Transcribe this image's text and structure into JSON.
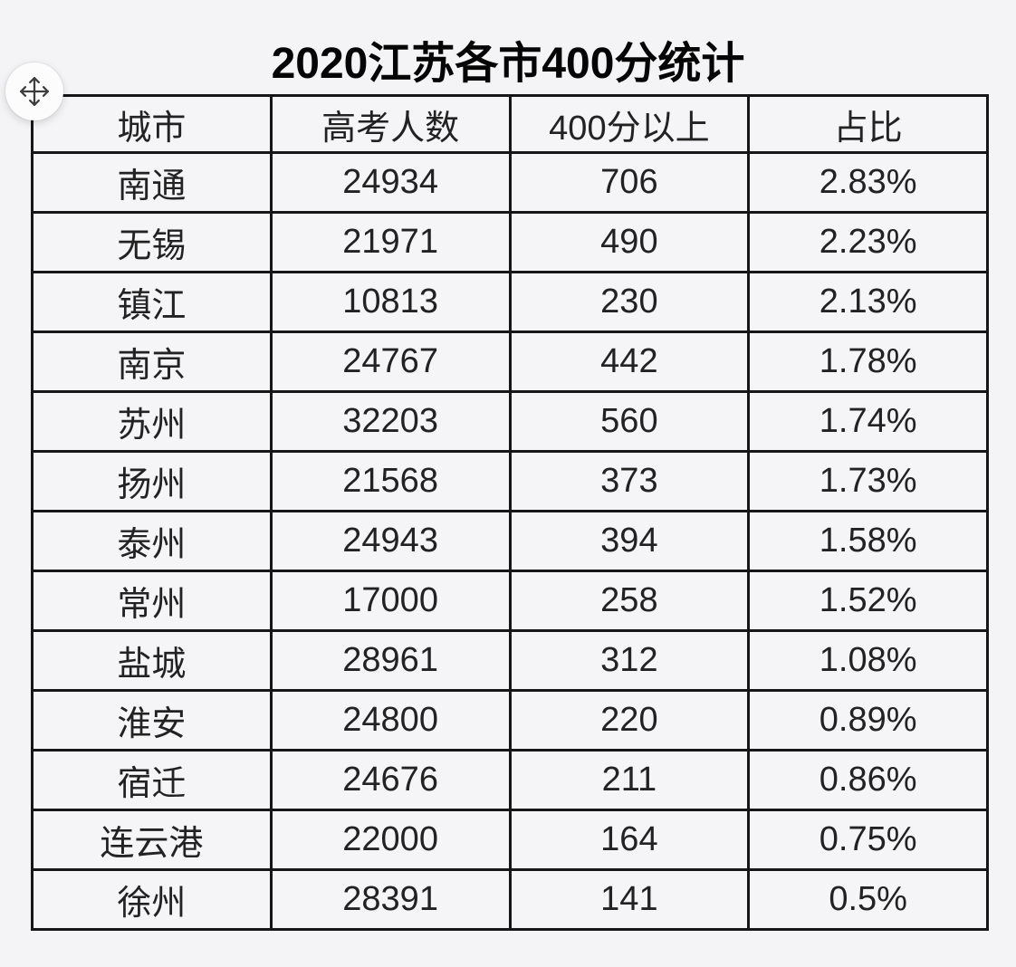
{
  "title": "2020江苏各市400分统计",
  "move_handle": {
    "icon": "four-way-move-arrow"
  },
  "colors": {
    "page_background": "#f4f3f5",
    "cell_background": "#f5f4f6",
    "table_border": "#161616",
    "cell_text": "#222222",
    "title_text": "#050505",
    "move_icon_stroke": "#3d3d3d"
  },
  "chart_data": {
    "type": "table",
    "title": "2020江苏各市400分统计",
    "columns": [
      "城市",
      "高考人数",
      "400分以上",
      "占比"
    ],
    "rows": [
      [
        "南通",
        "24934",
        "706",
        "2.83%"
      ],
      [
        "无锡",
        "21971",
        "490",
        "2.23%"
      ],
      [
        "镇江",
        "10813",
        "230",
        "2.13%"
      ],
      [
        "南京",
        "24767",
        "442",
        "1.78%"
      ],
      [
        "苏州",
        "32203",
        "560",
        "1.74%"
      ],
      [
        "扬州",
        "21568",
        "373",
        "1.73%"
      ],
      [
        "泰州",
        "24943",
        "394",
        "1.58%"
      ],
      [
        "常州",
        "17000",
        "258",
        "1.52%"
      ],
      [
        "盐城",
        "28961",
        "312",
        "1.08%"
      ],
      [
        "淮安",
        "24800",
        "220",
        "0.89%"
      ],
      [
        "宿迁",
        "24676",
        "211",
        "0.86%"
      ],
      [
        "连云港",
        "22000",
        "164",
        "0.75%"
      ],
      [
        "徐州",
        "28391",
        "141",
        "0.5%"
      ]
    ]
  }
}
